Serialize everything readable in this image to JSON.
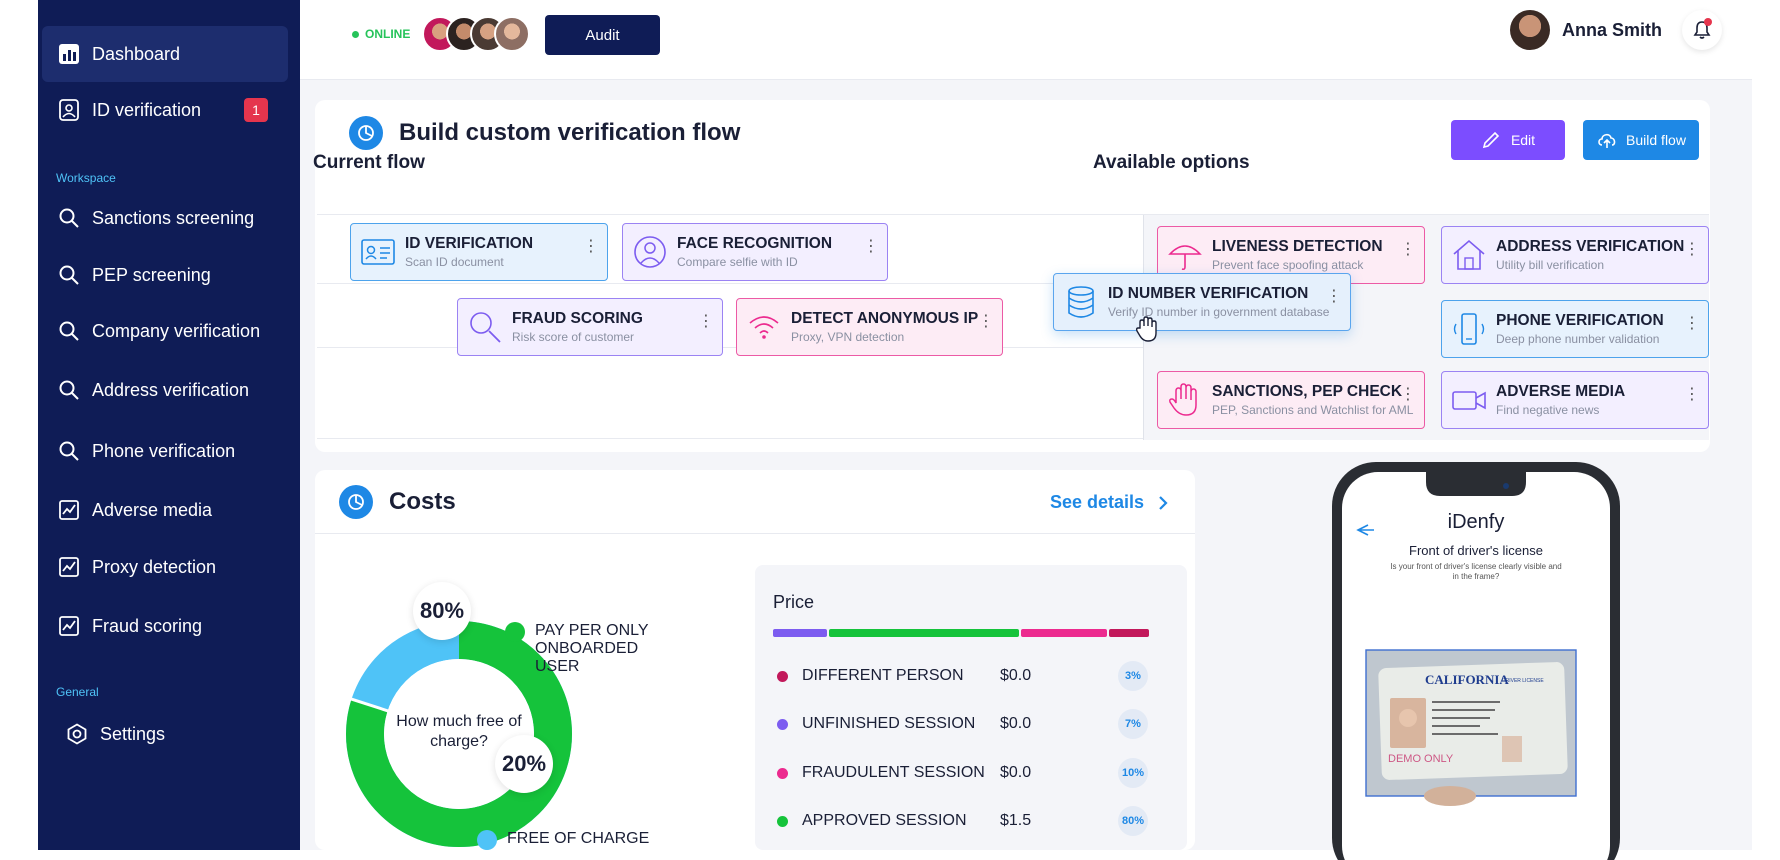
{
  "sidebar": {
    "items": [
      {
        "label": "Dashboard",
        "icon": "chart-icon"
      },
      {
        "label": "ID verification",
        "icon": "id-card-icon",
        "badge": "1"
      },
      {
        "label": "Sanctions screening",
        "icon": "search-icon"
      },
      {
        "label": "PEP screening",
        "icon": "search-icon"
      },
      {
        "label": "Company verification",
        "icon": "search-icon"
      },
      {
        "label": "Address verification",
        "icon": "search-icon"
      },
      {
        "label": "Phone verification",
        "icon": "search-icon"
      },
      {
        "label": "Adverse media",
        "icon": "chart-line-icon"
      },
      {
        "label": "Proxy detection",
        "icon": "chart-line-icon"
      },
      {
        "label": "Fraud scoring",
        "icon": "chart-line-icon"
      },
      {
        "label": "Settings",
        "icon": "settings-icon"
      }
    ],
    "section_workspace": "Workspace",
    "section_general": "General"
  },
  "topbar": {
    "status": "ONLINE",
    "audit_label": "Audit",
    "user_name": "Anna Smith"
  },
  "flow": {
    "title": "Build custom verification flow",
    "edit_label": "Edit",
    "build_label": "Build flow",
    "current_label": "Current flow",
    "available_label": "Available options",
    "current": [
      {
        "title": "ID VERIFICATION",
        "sub": "Scan ID document"
      },
      {
        "title": "FACE RECOGNITION",
        "sub": "Compare selfie with ID"
      },
      {
        "title": "FRAUD SCORING",
        "sub": "Risk score of customer"
      },
      {
        "title": "DETECT ANONYMOUS IP",
        "sub": "Proxy, VPN detection"
      }
    ],
    "dragging": {
      "title": "ID NUMBER VERIFICATION",
      "sub": "Verify ID number in government database"
    },
    "available": [
      {
        "title": "LIVENESS DETECTION",
        "sub": "Prevent face spoofing attack"
      },
      {
        "title": "ADDRESS VERIFICATION",
        "sub": "Utility bill verification"
      },
      {
        "title": "PHONE VERIFICATION",
        "sub": "Deep phone number validation"
      },
      {
        "title": "SANCTIONS, PEP CHECK",
        "sub": "PEP, Sanctions and Watchlist for AML"
      },
      {
        "title": "ADVERSE MEDIA",
        "sub": "Find negative news"
      }
    ]
  },
  "costs": {
    "title": "Costs",
    "see_details": "See details",
    "donut_center": "How much free of charge?",
    "legend": [
      {
        "label": "PAY PER ONLY ONBOARDED USER",
        "pct": "80%",
        "color": "#15c33b",
        "value": 80
      },
      {
        "label": "FREE OF CHARGE",
        "pct": "20%",
        "color": "#4fc3f7",
        "value": 20
      }
    ],
    "price_title": "Price",
    "prices": [
      {
        "label": "DIFFERENT PERSON",
        "value": "$0.0",
        "pct": "3%",
        "color": "#c2185b"
      },
      {
        "label": "UNFINISHED SESSION",
        "value": "$0.0",
        "pct": "7%",
        "color": "#7c5cf0"
      },
      {
        "label": "FRAUDULENT SESSION",
        "value": "$0.0",
        "pct": "10%",
        "color": "#ec2a8f"
      },
      {
        "label": "APPROVED SESSION",
        "value": "$1.5",
        "pct": "80%",
        "color": "#15c33b"
      }
    ]
  },
  "phone": {
    "brand": "iDenfy",
    "screen_title": "Front of driver's license",
    "screen_sub": "Is your front of driver's license clearly visible and in the frame?",
    "license_state": "CALIFORNIA",
    "license_type": "DRIVER LICENSE",
    "demo_text": "DEMO ONLY"
  }
}
